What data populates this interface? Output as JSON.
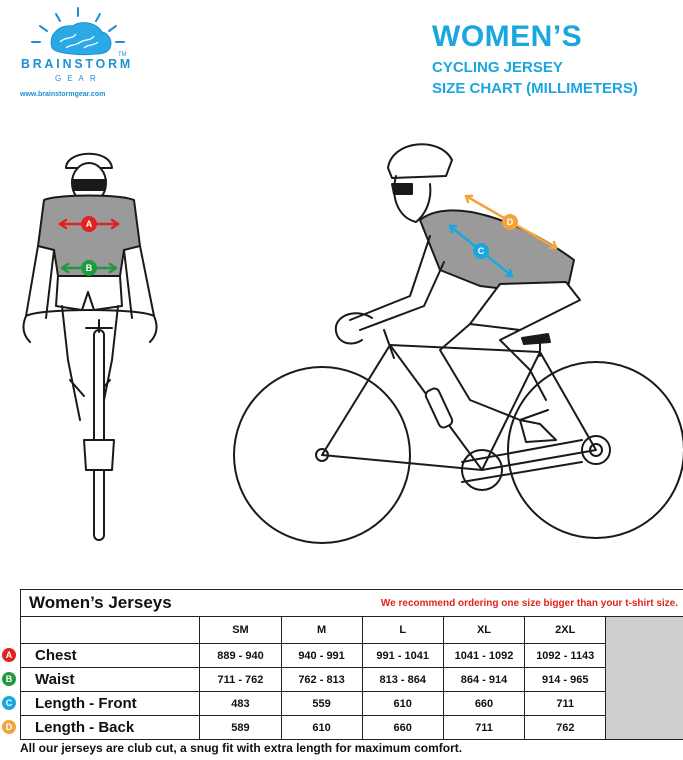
{
  "brand": {
    "name": "BRAINSTORM",
    "tm": "TM",
    "sub": "GEAR",
    "url": "www.brainstormgear.com"
  },
  "title": {
    "main": "WOMEN’S",
    "line1": "CYCLING JERSEY",
    "line2": "SIZE CHART (MILLIMETERS)"
  },
  "table": {
    "title": "Women’s Jerseys",
    "note": "We recommend ordering one size bigger than your t-shirt size.",
    "sizes": [
      "SM",
      "M",
      "L",
      "XL",
      "2XL"
    ],
    "rows": [
      {
        "marker": "A",
        "color": "#e0231f",
        "label": "Chest",
        "values": [
          "889 - 940",
          "940 - 991",
          "991 - 1041",
          "1041 - 1092",
          "1092 - 1143"
        ]
      },
      {
        "marker": "B",
        "color": "#1f9a3e",
        "label": "Waist",
        "values": [
          "711 - 762",
          "762 - 813",
          "813 - 864",
          "864 - 914",
          "914 - 965"
        ]
      },
      {
        "marker": "C",
        "color": "#1aa6df",
        "label": "Length - Front",
        "values": [
          "483",
          "559",
          "610",
          "660",
          "711"
        ]
      },
      {
        "marker": "D",
        "color": "#f2a33a",
        "label": "Length - Back",
        "values": [
          "589",
          "610",
          "660",
          "711",
          "762"
        ]
      }
    ]
  },
  "footer": "All our jerseys are club cut, a snug fit with extra length for maximum comfort.",
  "colors": {
    "accent": "#1aa6df",
    "chest": "#e0231f",
    "waist": "#1f9a3e",
    "front": "#1aa6df",
    "back": "#f2a33a",
    "jersey": "#9a9a9a"
  }
}
